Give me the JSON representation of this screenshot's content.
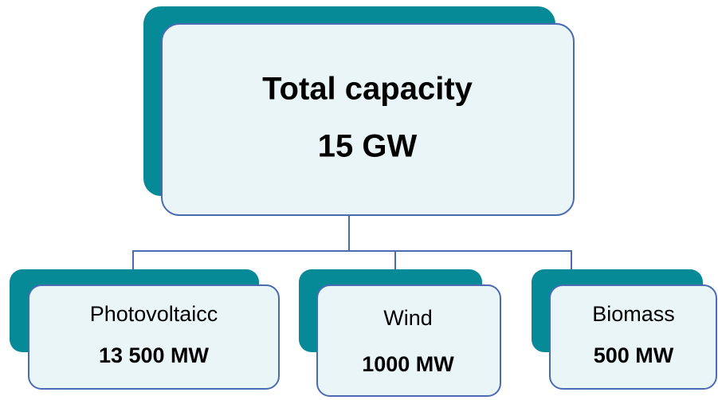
{
  "root": {
    "title": "Total capacity",
    "value": "15 GW"
  },
  "children": [
    {
      "label": "Photovoltaicc",
      "value": "13 500 MW"
    },
    {
      "label": "Wind",
      "value": "1000 MW"
    },
    {
      "label": "Biomass",
      "value": "500 MW"
    }
  ]
}
